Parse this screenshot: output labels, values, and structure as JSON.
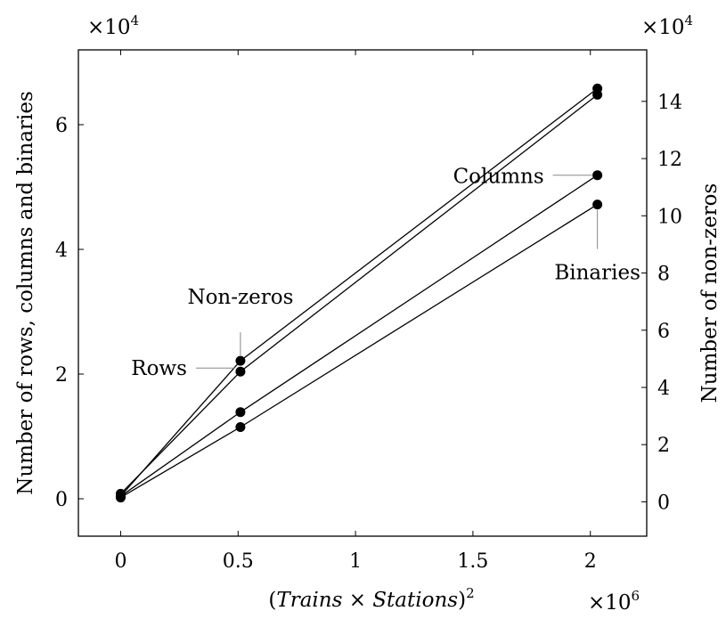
{
  "chart_data": {
    "type": "line",
    "xlabel": "(Trains × Stations)²",
    "xlabel_parts": {
      "lparen": "(",
      "trains": "Trains",
      "times": " × ",
      "stations": "Stations",
      "rparen": ")",
      "sup": "2"
    },
    "x_multiplier": {
      "base": "×10",
      "exp": "6"
    },
    "ylabel_left": "Number of rows, columns and binaries",
    "ylabel_right": "Number of non-zeros",
    "y_left_multiplier": {
      "base": "×10",
      "exp": "4"
    },
    "y_right_multiplier": {
      "base": "×10",
      "exp": "4"
    },
    "xlim": [
      -0.18,
      2.24
    ],
    "ylim_left": [
      -0.6,
      7.2
    ],
    "ylim_right": [
      -1.2,
      15.8
    ],
    "x_ticks": [
      0,
      0.5,
      1,
      1.5,
      2
    ],
    "x_tick_labels": [
      "0",
      "0.5",
      "1",
      "1.5",
      "2"
    ],
    "y_left_ticks": [
      0,
      2,
      4,
      6
    ],
    "y_left_tick_labels": [
      "0",
      "2",
      "4",
      "6"
    ],
    "y_right_ticks": [
      0,
      2,
      4,
      6,
      8,
      10,
      12,
      14
    ],
    "y_right_tick_labels": [
      "0",
      "2",
      "4",
      "6",
      "8",
      "10",
      "12",
      "14"
    ],
    "grid": false,
    "series": [
      {
        "name": "Rows",
        "axis": "left",
        "x": [
          0,
          0.51,
          2.03
        ],
        "y": [
          0.08,
          2.04,
          6.48
        ]
      },
      {
        "name": "Columns",
        "axis": "left",
        "x": [
          0,
          0.51,
          2.03
        ],
        "y": [
          0.04,
          1.39,
          5.19
        ]
      },
      {
        "name": "Binaries",
        "axis": "left",
        "x": [
          0,
          0.51,
          2.03
        ],
        "y": [
          0.02,
          1.15,
          4.72
        ]
      },
      {
        "name": "Non-zeros",
        "axis": "right",
        "x": [
          0,
          0.51,
          2.03
        ],
        "y": [
          0.2,
          4.93,
          14.45
        ]
      }
    ],
    "annotations": [
      "Non-zeros",
      "Rows",
      "Columns",
      "Binaries"
    ]
  }
}
